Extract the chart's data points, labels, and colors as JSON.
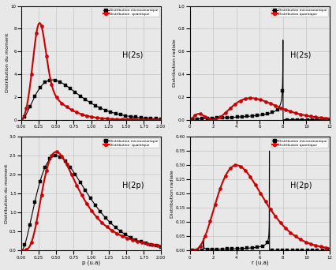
{
  "legend_micro": "Distribution microcanonique",
  "legend_quant": "Distribution  quantique",
  "legend_quant2": "Distribution quantique",
  "ylabel_moment": "Distribution du moment",
  "ylabel_radiale": "Distribution radiale",
  "xlabel_p": "p (u.a)",
  "xlabel_r": "r (u.a)",
  "label_2s": "H(2s)",
  "label_2p": "H(2p)",
  "micro_color": "#000000",
  "quant_color": "#cc0000",
  "grid_color": "#bbbbbb",
  "bg_color": "#e8e8e8",
  "subplot_bg": "#e8e8e8",
  "lw_micro": 0.8,
  "lw_quant": 1.5,
  "ms_micro": 3.0,
  "ms_quant": 3.0,
  "tick_fs": 4,
  "label_fs": 4.5,
  "xlabel_fs": 5,
  "legend_fs": 3.2,
  "annot_fs": 7
}
